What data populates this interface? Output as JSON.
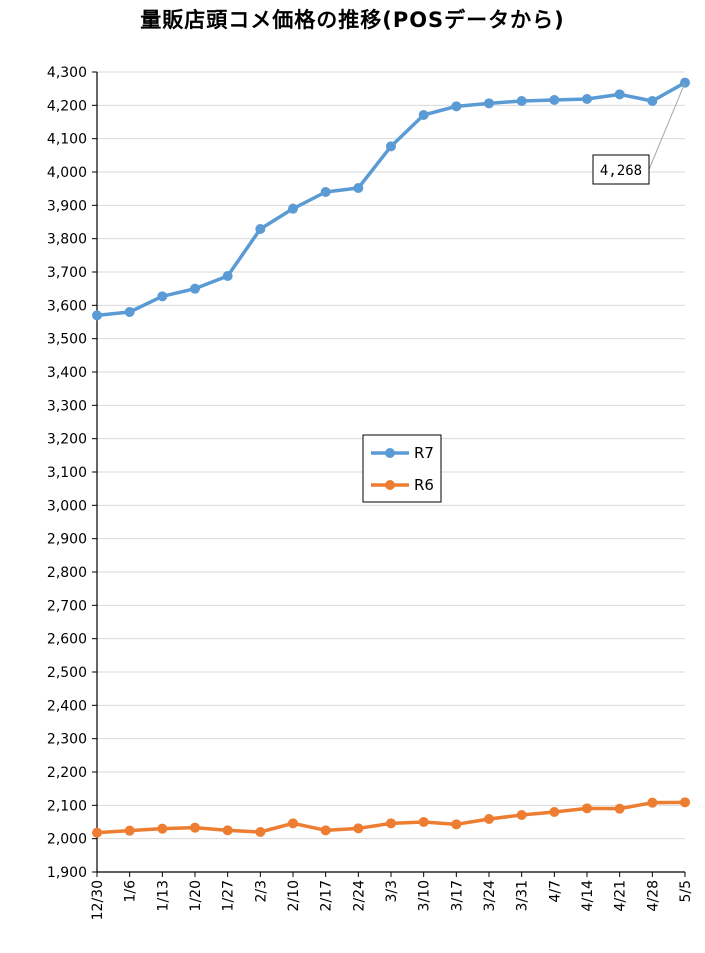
{
  "chart_data": {
    "type": "line",
    "title": "量販店頭コメ価格の推移(POSデータから)",
    "categories": [
      "12/30",
      "1/6",
      "1/13",
      "1/20",
      "1/27",
      "2/3",
      "2/10",
      "2/17",
      "2/24",
      "3/3",
      "3/10",
      "3/17",
      "3/24",
      "3/31",
      "4/7",
      "4/14",
      "4/21",
      "4/28",
      "5/5"
    ],
    "series": [
      {
        "name": "R7",
        "color": "#5b9bd5",
        "values": [
          3570,
          3580,
          3627,
          3650,
          3688,
          3829,
          3890,
          3940,
          3952,
          4077,
          4171,
          4197,
          4206,
          4213,
          4216,
          4219,
          4233,
          4213,
          4268
        ]
      },
      {
        "name": "R6",
        "color": "#ed7d31",
        "values": [
          2018,
          2024,
          2030,
          2033,
          2025,
          2020,
          2046,
          2025,
          2031,
          2046,
          2050,
          2043,
          2059,
          2071,
          2080,
          2091,
          2090,
          2108,
          2109
        ]
      }
    ],
    "ylim": [
      1900,
      4300
    ],
    "yticks": [
      "1,900",
      "2,000",
      "2,100",
      "2,200",
      "2,300",
      "2,400",
      "2,500",
      "2,600",
      "2,700",
      "2,800",
      "2,900",
      "3,000",
      "3,100",
      "3,200",
      "3,300",
      "3,400",
      "3,500",
      "3,600",
      "3,700",
      "3,800",
      "3,900",
      "4,000",
      "4,100",
      "4,200",
      "4,300"
    ],
    "ytick_values": [
      1900,
      2000,
      2100,
      2200,
      2300,
      2400,
      2500,
      2600,
      2700,
      2800,
      2900,
      3000,
      3100,
      3200,
      3300,
      3400,
      3500,
      3600,
      3700,
      3800,
      3900,
      4000,
      4100,
      4200,
      4300
    ],
    "grid": true,
    "legend_position": "center",
    "annotation": {
      "text": "4,268",
      "series": "R7",
      "category": "5/5"
    }
  }
}
